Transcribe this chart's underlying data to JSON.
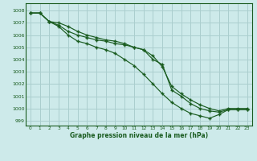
{
  "title": "Graphe pression niveau de la mer (hPa)",
  "bg_color": "#cdeaea",
  "grid_color": "#aacece",
  "line_color": "#1a5c20",
  "x_ticks": [
    0,
    1,
    2,
    3,
    4,
    5,
    6,
    7,
    8,
    9,
    10,
    11,
    12,
    13,
    14,
    15,
    16,
    17,
    18,
    19,
    20,
    21,
    22,
    23
  ],
  "ylim": [
    998.6,
    1008.6
  ],
  "yticks": [
    999,
    1000,
    1001,
    1002,
    1003,
    1004,
    1005,
    1006,
    1007,
    1008
  ],
  "series": [
    [
      1007.8,
      1007.8,
      1007.1,
      1006.8,
      1006.3,
      1006.0,
      1005.8,
      1005.6,
      1005.5,
      1005.3,
      1005.2,
      1005.0,
      1004.8,
      1004.0,
      1003.6,
      1001.5,
      1001.0,
      1000.4,
      1000.0,
      999.8,
      999.7,
      999.9,
      999.9,
      999.9
    ],
    [
      1007.8,
      1007.8,
      1007.1,
      1007.0,
      1006.7,
      1006.3,
      1006.0,
      1005.8,
      1005.6,
      1005.5,
      1005.3,
      1005.0,
      1004.8,
      1004.3,
      1003.4,
      1001.8,
      1001.2,
      1000.7,
      1000.3,
      1000.0,
      999.8,
      1000.0,
      1000.0,
      1000.0
    ],
    [
      1007.8,
      1007.8,
      1007.1,
      1006.7,
      1006.0,
      1005.5,
      1005.3,
      1005.0,
      1004.8,
      1004.5,
      1004.0,
      1003.5,
      1002.8,
      1002.0,
      1001.2,
      1000.5,
      1000.0,
      999.6,
      999.4,
      999.2,
      999.5,
      999.9,
      999.9,
      999.9
    ]
  ]
}
